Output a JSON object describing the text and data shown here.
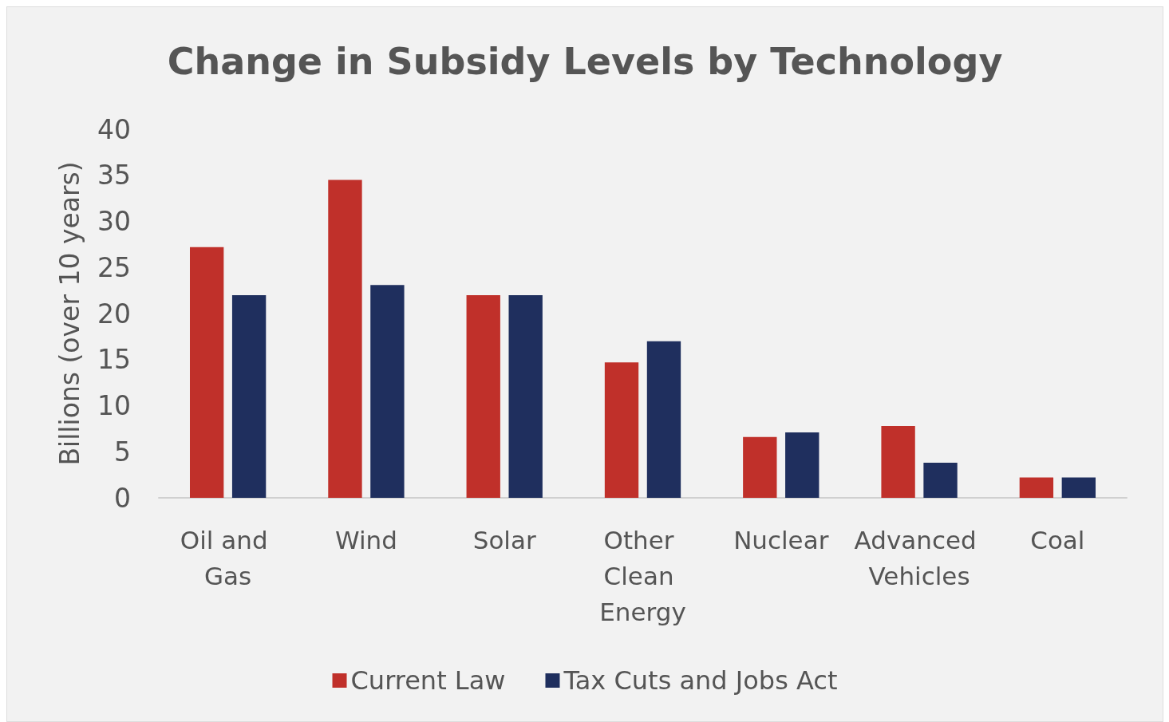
{
  "chart_data": {
    "type": "bar",
    "title": "Change in Subsidy Levels by Technology",
    "ylabel": "Billions (over 10 years)",
    "categories": [
      "Oil and Gas",
      "Wind",
      "Solar",
      "Other Clean Energy",
      "Nuclear",
      "Advanced Vehicles",
      "Coal"
    ],
    "series": [
      {
        "name": "Current Law",
        "color": "#c0302a",
        "values": [
          27.2,
          34.5,
          22,
          14.7,
          6.6,
          7.8,
          2.2
        ]
      },
      {
        "name": "Tax Cuts and Jobs Act",
        "color": "#1f2f5e",
        "values": [
          22,
          23.1,
          22,
          17,
          7.1,
          3.8,
          2.2
        ]
      }
    ],
    "ylim": [
      0,
      40
    ],
    "yticks": [
      0,
      5,
      10,
      15,
      20,
      25,
      30,
      35,
      40
    ],
    "grid": false,
    "legend": "bottom"
  }
}
